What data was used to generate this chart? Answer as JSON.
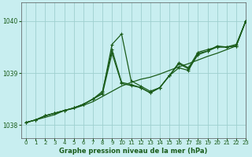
{
  "title": "Graphe pression niveau de la mer (hPa)",
  "background_color": "#c8eef0",
  "grid_color": "#9fcfcf",
  "line_color": "#1a5c1a",
  "xlim": [
    -0.5,
    23
  ],
  "ylim": [
    1037.75,
    1040.35
  ],
  "yticks": [
    1038,
    1039,
    1040
  ],
  "xticks": [
    0,
    1,
    2,
    3,
    4,
    5,
    6,
    7,
    8,
    9,
    10,
    11,
    12,
    13,
    14,
    15,
    16,
    17,
    18,
    19,
    20,
    21,
    22,
    23
  ],
  "series": [
    {
      "y": [
        1038.05,
        1038.1,
        1038.15,
        1038.2,
        1038.28,
        1038.32,
        1038.38,
        1038.45,
        1038.55,
        1038.65,
        1038.75,
        1038.82,
        1038.88,
        1038.92,
        1038.98,
        1039.05,
        1039.12,
        1039.18,
        1039.25,
        1039.32,
        1039.38,
        1039.45,
        1039.52,
        1040.0
      ],
      "style": "straight",
      "marker": null,
      "lw": 0.9
    },
    {
      "y": [
        1038.05,
        1038.1,
        1038.18,
        1038.23,
        1038.28,
        1038.33,
        1038.4,
        1038.5,
        1038.62,
        1039.55,
        1039.75,
        1038.85,
        1038.75,
        1038.65,
        1038.72,
        1038.95,
        1039.1,
        1039.05,
        1039.38,
        1039.42,
        1039.52,
        1039.5,
        1039.55,
        1040.0
      ],
      "style": "jagged",
      "marker": "+",
      "lw": 0.9
    },
    {
      "y": [
        1038.05,
        1038.1,
        1038.18,
        1038.23,
        1038.28,
        1038.33,
        1038.4,
        1038.5,
        1038.65,
        1039.45,
        1038.82,
        1038.78,
        1038.72,
        1038.62,
        1038.72,
        1038.95,
        1039.2,
        1039.1,
        1039.4,
        1039.45,
        1039.5,
        1039.5,
        1039.52,
        1040.0
      ],
      "style": "jagged",
      "marker": "+",
      "lw": 0.9
    },
    {
      "y": [
        1038.05,
        1038.1,
        1038.18,
        1038.23,
        1038.28,
        1038.33,
        1038.4,
        1038.5,
        1038.6,
        1039.38,
        1038.8,
        1038.76,
        1038.72,
        1038.62,
        1038.72,
        1038.95,
        1039.18,
        1039.08,
        1039.35,
        1039.42,
        1039.5,
        1039.5,
        1039.52,
        1040.0
      ],
      "style": "jagged",
      "marker": "+",
      "lw": 0.9
    }
  ]
}
